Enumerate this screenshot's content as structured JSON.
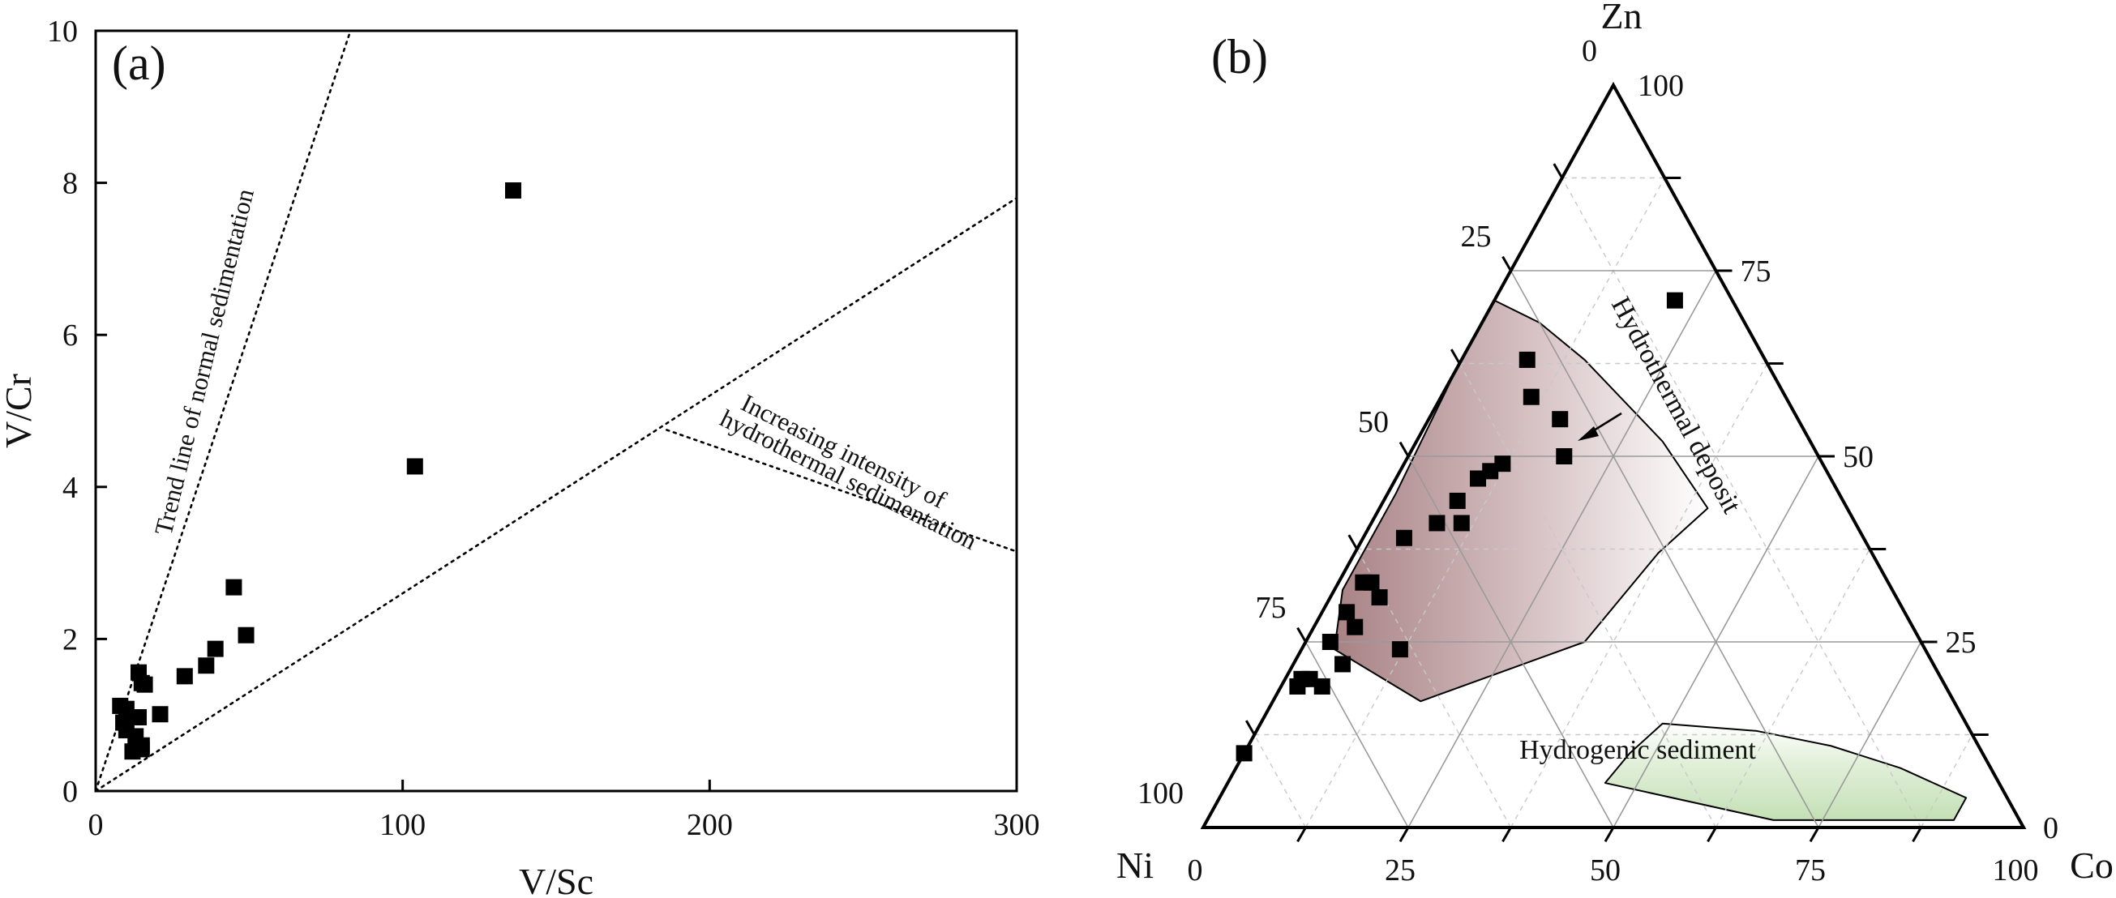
{
  "chart_data": [
    {
      "type": "scatter",
      "panel_label": "(a)",
      "xlabel": "V/Sc",
      "ylabel": "V/Cr",
      "xlim": [
        0,
        300
      ],
      "ylim": [
        0,
        10
      ],
      "x_ticks": [
        "0",
        "100",
        "200",
        "300"
      ],
      "y_ticks": [
        "0",
        "2",
        "4",
        "6",
        "8",
        "10"
      ],
      "grid": false,
      "marker": "filled-square",
      "color": "#000000",
      "reference_lines": [
        {
          "label": "Trend line of normal sedimentation",
          "from": [
            0,
            0
          ],
          "to": [
            83,
            10
          ],
          "style": "dotted"
        },
        {
          "label": "",
          "from": [
            0,
            0
          ],
          "to": [
            300,
            7.8
          ],
          "style": "dotted"
        },
        {
          "label": "Increasing intensity of hydrothermal sedimentation",
          "from": [
            186,
            4.75
          ],
          "to": [
            300,
            3.15
          ],
          "style": "dotted"
        }
      ],
      "annotations": {
        "trend_line": "Trend line of normal sedimentation",
        "hydrothermal_line1": "Increasing intensity of",
        "hydrothermal_line2": "hydrothermal sedimentation"
      },
      "points": [
        {
          "x": 136,
          "y": 7.9
        },
        {
          "x": 104,
          "y": 4.27
        },
        {
          "x": 45,
          "y": 2.68
        },
        {
          "x": 49,
          "y": 2.05
        },
        {
          "x": 39,
          "y": 1.87
        },
        {
          "x": 36,
          "y": 1.65
        },
        {
          "x": 29,
          "y": 1.51
        },
        {
          "x": 14,
          "y": 1.56
        },
        {
          "x": 15,
          "y": 1.42
        },
        {
          "x": 16,
          "y": 1.4
        },
        {
          "x": 8,
          "y": 1.12
        },
        {
          "x": 10,
          "y": 1.08
        },
        {
          "x": 21,
          "y": 1.01
        },
        {
          "x": 14,
          "y": 0.97
        },
        {
          "x": 9,
          "y": 0.9
        },
        {
          "x": 10,
          "y": 0.8
        },
        {
          "x": 13,
          "y": 0.72
        },
        {
          "x": 15,
          "y": 0.6
        },
        {
          "x": 12,
          "y": 0.52
        },
        {
          "x": 15,
          "y": 0.55
        }
      ]
    },
    {
      "type": "scatter",
      "subtype": "ternary",
      "panel_label": "(b)",
      "axes": {
        "top": "Zn",
        "left": "Ni",
        "right": "Co"
      },
      "ticks": {
        "zn": [
          "0",
          "25",
          "50",
          "75",
          "100"
        ],
        "co": [
          "0",
          "25",
          "50",
          "75",
          "100"
        ],
        "bottom": [
          "0",
          "25",
          "50",
          "75",
          "100"
        ]
      },
      "gridlines": "dashed, every 12.5",
      "regions": [
        {
          "name": "Hydrothermal deposit",
          "fill": "#a88285",
          "outline": [
            [
              0.71,
              0.29,
              0.0
            ],
            [
              0.68,
              0.25,
              0.07
            ],
            [
              0.63,
              0.22,
              0.15
            ],
            [
              0.52,
              0.18,
              0.3
            ],
            [
              0.43,
              0.17,
              0.4
            ],
            [
              0.37,
              0.26,
              0.37
            ],
            [
              0.25,
              0.41,
              0.34
            ],
            [
              0.17,
              0.65,
              0.18
            ],
            [
              0.24,
              0.72,
              0.04
            ],
            [
              0.32,
              0.67,
              0.01
            ],
            [
              0.45,
              0.54,
              0.01
            ],
            [
              0.62,
              0.38,
              0.0
            ]
          ]
        },
        {
          "name": "Hydrogenic sediment",
          "fill": "#cfe5c3",
          "outline": [
            [
              0.13,
              0.26,
              0.61
            ],
            [
              0.12,
              0.22,
              0.66
            ],
            [
              0.11,
              0.18,
              0.71
            ],
            [
              0.08,
              0.11,
              0.81
            ],
            [
              0.04,
              0.05,
              0.91
            ],
            [
              0.01,
              0.08,
              0.91
            ],
            [
              0.01,
              0.3,
              0.69
            ],
            [
              0.06,
              0.48,
              0.46
            ],
            [
              0.1,
              0.43,
              0.47
            ],
            [
              0.14,
              0.37,
              0.49
            ]
          ]
        }
      ],
      "region_labels": {
        "hydrothermal": "Hydrothermal deposit",
        "hydrogenic": "Hydrogenic sediment"
      },
      "points": [
        {
          "zn": 0.71,
          "co": 0.22
        },
        {
          "zn": 0.63,
          "co": 0.08
        },
        {
          "zn": 0.58,
          "co": 0.11
        },
        {
          "zn": 0.55,
          "co": 0.16
        },
        {
          "zn": 0.5,
          "co": 0.19
        },
        {
          "zn": 0.49,
          "co": 0.12
        },
        {
          "zn": 0.48,
          "co": 0.11
        },
        {
          "zn": 0.47,
          "co": 0.1
        },
        {
          "zn": 0.44,
          "co": 0.09
        },
        {
          "zn": 0.41,
          "co": 0.11
        },
        {
          "zn": 0.41,
          "co": 0.08
        },
        {
          "zn": 0.39,
          "co": 0.05
        },
        {
          "zn": 0.33,
          "co": 0.04
        },
        {
          "zn": 0.33,
          "co": 0.03
        },
        {
          "zn": 0.31,
          "co": 0.06
        },
        {
          "zn": 0.29,
          "co": 0.03
        },
        {
          "zn": 0.27,
          "co": 0.05
        },
        {
          "zn": 0.25,
          "co": 0.03
        },
        {
          "zn": 0.24,
          "co": 0.12
        },
        {
          "zn": 0.22,
          "co": 0.06
        },
        {
          "zn": 0.2,
          "co": 0.03
        },
        {
          "zn": 0.2,
          "co": 0.02
        },
        {
          "zn": 0.19,
          "co": 0.02
        },
        {
          "zn": 0.19,
          "co": 0.05
        },
        {
          "zn": 0.1,
          "co": 0.0
        }
      ]
    }
  ]
}
